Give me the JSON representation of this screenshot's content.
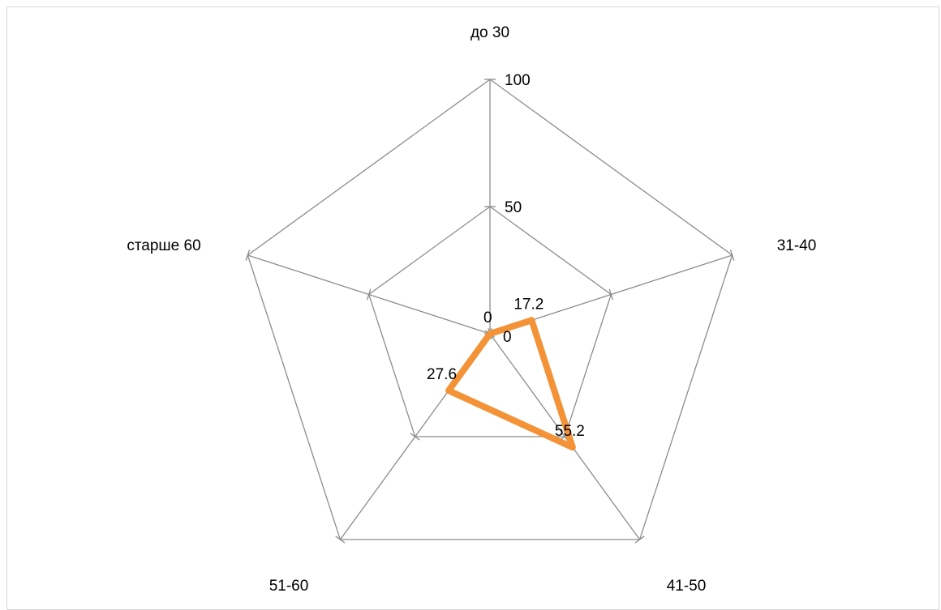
{
  "chart_data": {
    "type": "radar",
    "title": "",
    "categories": [
      "до 30",
      "31-40",
      "41-50",
      "51-60",
      "старше 60"
    ],
    "series": [
      {
        "values": [
          0,
          17.2,
          55.2,
          27.6,
          0
        ],
        "data_labels": [
          "0",
          "17.2",
          "55.2",
          "27.6",
          "0"
        ],
        "color": "#f39237"
      }
    ],
    "axis": {
      "min": 0,
      "max": 100,
      "major_unit": 50,
      "tick_labels": [
        "0",
        "50",
        "100"
      ]
    },
    "grid": true,
    "legend": "none",
    "colors": {
      "grid": "#8c8c8c",
      "series": "#f39237",
      "border": "#d9d9d9"
    }
  }
}
